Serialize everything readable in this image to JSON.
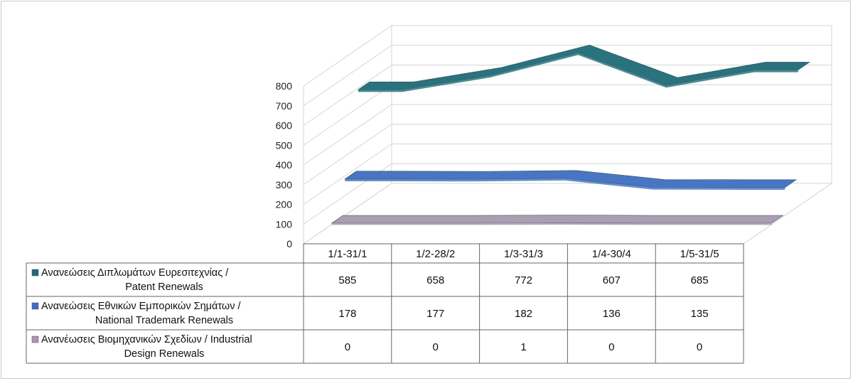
{
  "chart_data": {
    "type": "line",
    "categories": [
      "1/1-31/1",
      "1/2-28/2",
      "1/3-31/3",
      "1/4-30/4",
      "1/5-31/5"
    ],
    "series": [
      {
        "name_line1": "Ανανεώσεις Διπλωμάτων Ευρεσιτεχνίας  /",
        "name_line2": "Patent Renewals",
        "values": [
          585,
          658,
          772,
          607,
          685
        ],
        "color": "#1f6b78"
      },
      {
        "name_line1": "Ανανεώσεις Εθνικών Εμπορικών Σημάτων /",
        "name_line2": "National Trademark Renewals",
        "values": [
          178,
          177,
          182,
          136,
          135
        ],
        "color": "#3f6fbf"
      },
      {
        "name_line1": "Ανανέωσεις Βιομηχανικών Σχεδίων / Industrial",
        "name_line2": "Design Renewals",
        "values": [
          0,
          0,
          1,
          0,
          0
        ],
        "color": "#a898ad"
      }
    ],
    "y_ticks": [
      "0",
      "100",
      "200",
      "300",
      "400",
      "500",
      "600",
      "700",
      "800"
    ],
    "ylim": [
      0,
      800
    ],
    "grid": true,
    "data_table": true,
    "projection": "3d"
  }
}
